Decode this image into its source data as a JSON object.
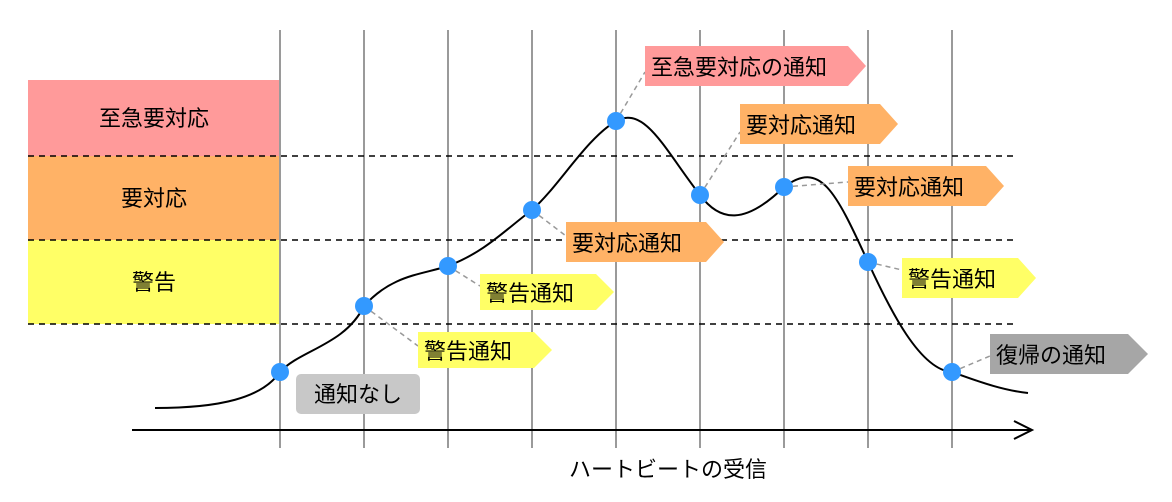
{
  "colors": {
    "critical": "#ff9a9a",
    "action": "#ffb266",
    "warning": "#ffff66",
    "none": "#c8c8c8",
    "recovery": "#a6a6a6",
    "point": "#3399ff",
    "curve": "#000000"
  },
  "bands": [
    {
      "label": "至急要対応",
      "color": "#ff9a9a"
    },
    {
      "label": "要対応",
      "color": "#ffb266"
    },
    {
      "label": "警告",
      "color": "#ffff66"
    }
  ],
  "axis": {
    "label": "ハートビートの受信"
  },
  "notifications": [
    {
      "label": "通知なし",
      "kind": "none",
      "color": "#c8c8c8"
    },
    {
      "label": "警告通知",
      "kind": "flag",
      "color": "#ffff66"
    },
    {
      "label": "警告通知",
      "kind": "flag",
      "color": "#ffff66"
    },
    {
      "label": "要対応通知",
      "kind": "flag",
      "color": "#ffb266"
    },
    {
      "label": "至急要対応の通知",
      "kind": "flag",
      "color": "#ff9a9a"
    },
    {
      "label": "要対応通知",
      "kind": "flag",
      "color": "#ffb266"
    },
    {
      "label": "要対応通知",
      "kind": "flag",
      "color": "#ffb266"
    },
    {
      "label": "警告通知",
      "kind": "flag",
      "color": "#ffff66"
    },
    {
      "label": "復帰の通知",
      "kind": "flag",
      "color": "#a6a6a6"
    }
  ]
}
